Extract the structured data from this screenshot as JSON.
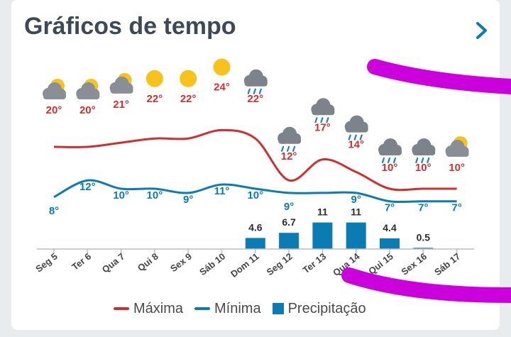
{
  "header": {
    "title": "Gráficos de tempo",
    "next_icon": "chevron-right-icon"
  },
  "colors": {
    "max": "#d12f2f",
    "min": "#0b7bb3",
    "precip": "#0b7bb3",
    "title": "#3d4a55",
    "axis_text": "#444444",
    "weather_sun": "#f7c21a",
    "weather_cloud": "#8a8f96",
    "weather_rain": "#1f7fc4",
    "annotation": "#cc00dd"
  },
  "chart_data": {
    "type": "line",
    "categories": [
      "Seg 5",
      "Ter 6",
      "Qua 7",
      "Qui 8",
      "Sex 9",
      "Sáb 10",
      "Dom 11",
      "Seg 12",
      "Ter 13",
      "Qua 14",
      "Qui 15",
      "Sex 16",
      "Sáb 17"
    ],
    "weather_icons": [
      "partly-cloudy-icon",
      "partly-cloudy-icon",
      "partly-cloudy-icon",
      "sun-icon",
      "sun-icon",
      "sun-icon",
      "rain-cloud-icon",
      "rain-cloud-icon",
      "rain-cloud-icon",
      "rain-cloud-icon",
      "rain-cloud-icon",
      "rain-cloud-icon",
      "partly-cloudy-icon"
    ],
    "series": [
      {
        "name": "Máxima",
        "type": "line",
        "values": [
          20,
          20,
          21,
          22,
          22,
          24,
          22,
          12,
          17,
          14,
          10,
          10,
          10
        ],
        "labels": [
          "20°",
          "20°",
          "21°",
          "22°",
          "22°",
          "24°",
          "22°",
          "12°",
          "17°",
          "14°",
          "10°",
          "10°",
          "10°"
        ]
      },
      {
        "name": "Mínima",
        "type": "line",
        "values": [
          8,
          12,
          10,
          10,
          9,
          11,
          10,
          9,
          9,
          9,
          7,
          7,
          7
        ],
        "labels": [
          "8°",
          "12°",
          "10°",
          "10°",
          "9°",
          "11°",
          "10°",
          "9°",
          "",
          "9°",
          "7°",
          "7°",
          "7°"
        ]
      },
      {
        "name": "Precipitação",
        "type": "bar",
        "values": [
          0,
          0,
          0,
          0,
          0,
          0,
          4.6,
          6.7,
          11,
          11,
          4.4,
          0.5,
          0
        ],
        "labels": [
          "",
          "",
          "",
          "",
          "",
          "",
          "4.6",
          "6.7",
          "11",
          "11",
          "4.4",
          "0.5",
          ""
        ]
      }
    ],
    "legend": [
      "Máxima",
      "Mínima",
      "Precipitação"
    ],
    "legend_position": "bottom",
    "grid": false
  }
}
